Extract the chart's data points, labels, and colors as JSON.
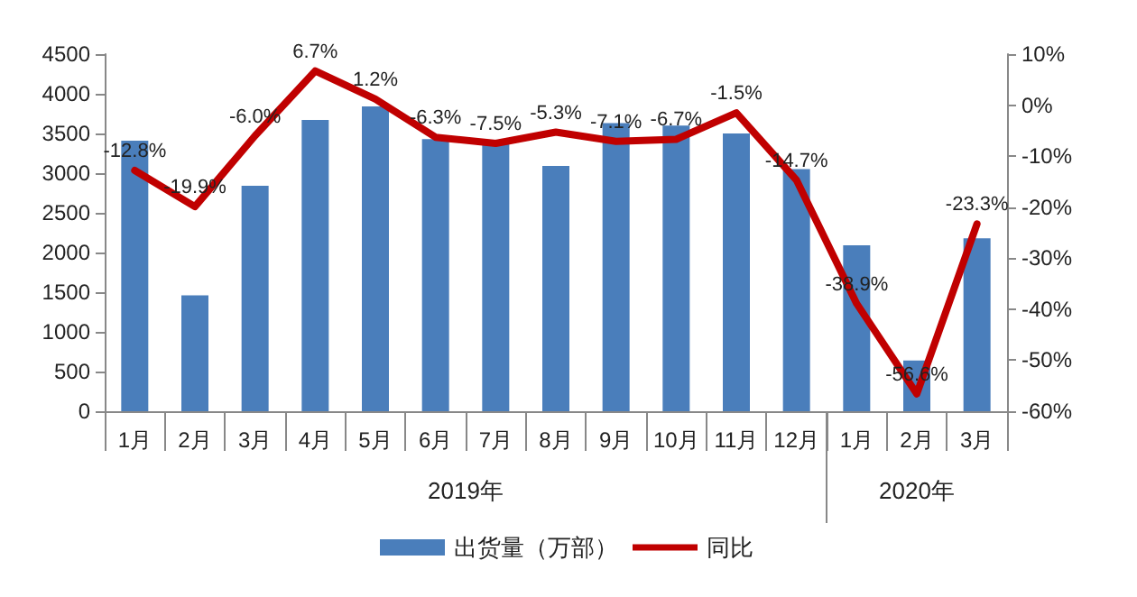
{
  "chart_data": {
    "type": "bar",
    "categories": [
      "1月",
      "2月",
      "3月",
      "4月",
      "5月",
      "6月",
      "7月",
      "8月",
      "9月",
      "10月",
      "11月",
      "12月",
      "1月",
      "2月",
      "3月"
    ],
    "series": [
      {
        "name": "出货量（万部）",
        "color": "#4a7ebb",
        "values": [
          3410,
          1460,
          2840,
          3670,
          3840,
          3430,
          3410,
          3090,
          3630,
          3600,
          3500,
          3050,
          2090,
          640,
          2180
        ]
      },
      {
        "name": "同比",
        "type": "line",
        "axis": "y2",
        "color": "#c00000",
        "values": [
          -12.8,
          -19.9,
          -6.0,
          6.7,
          1.2,
          -6.3,
          -7.5,
          -5.3,
          -7.1,
          -6.7,
          -1.5,
          -14.7,
          -38.9,
          -56.6,
          -23.3
        ],
        "value_labels": [
          "-12.8%",
          "-19.9%",
          "-6.0%",
          "6.7%",
          "1.2%",
          "-6.3%",
          "-7.5%",
          "-5.3%",
          "-7.1%",
          "-6.7%",
          "-1.5%",
          "-14.7%",
          "-38.9%",
          "-56.6%",
          "-23.3%"
        ]
      }
    ],
    "ylim": [
      0,
      4500
    ],
    "yticks": [
      0,
      500,
      1000,
      1500,
      2000,
      2500,
      3000,
      3500,
      4000,
      4500
    ],
    "y2lim": [
      -60,
      10
    ],
    "y2ticks": [
      {
        "value": -60,
        "label": "-60%"
      },
      {
        "value": -50,
        "label": "-50%"
      },
      {
        "value": -40,
        "label": "-40%"
      },
      {
        "value": -30,
        "label": "-30%"
      },
      {
        "value": -20,
        "label": "-20%"
      },
      {
        "value": -10,
        "label": "-10%"
      },
      {
        "value": 0,
        "label": "0%"
      },
      {
        "value": 10,
        "label": "10%"
      }
    ],
    "annotations": [
      "2019年",
      "2020年"
    ],
    "grid": false,
    "legend": "bottom",
    "marker": "none",
    "line_style": "solid"
  }
}
